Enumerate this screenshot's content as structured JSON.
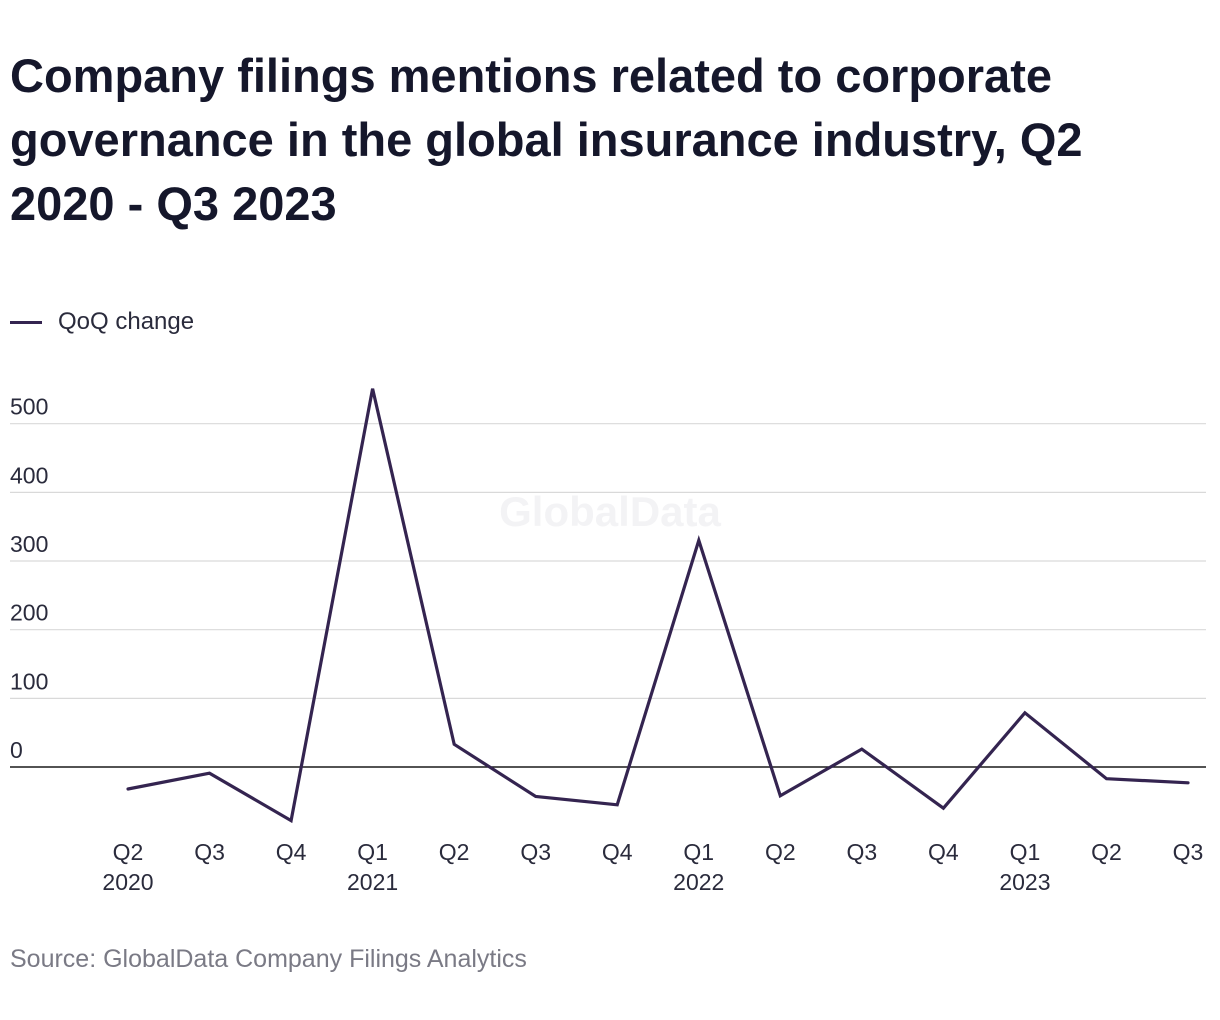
{
  "title": "Company filings mentions related to corporate governance in the global insurance industry, Q2 2020 - Q3 2023",
  "legend": {
    "label": "QoQ change",
    "color": "#342450"
  },
  "watermark": "GlobalData",
  "source": "Source: GlobalData Company Filings Analytics",
  "chart_data": {
    "type": "line",
    "title": "Company filings mentions related to corporate governance in the global insurance industry, Q2 2020 - Q3 2023",
    "xlabel": "",
    "ylabel": "",
    "categories": [
      "Q2 2020",
      "Q3 2020",
      "Q4 2020",
      "Q1 2021",
      "Q2 2021",
      "Q3 2021",
      "Q4 2021",
      "Q1 2022",
      "Q2 2022",
      "Q3 2022",
      "Q4 2022",
      "Q1 2023",
      "Q2 2023",
      "Q3 2023"
    ],
    "tick_labels": [
      {
        "quarter": "Q2",
        "year": "2020"
      },
      {
        "quarter": "Q3",
        "year": ""
      },
      {
        "quarter": "Q4",
        "year": ""
      },
      {
        "quarter": "Q1",
        "year": "2021"
      },
      {
        "quarter": "Q2",
        "year": ""
      },
      {
        "quarter": "Q3",
        "year": ""
      },
      {
        "quarter": "Q4",
        "year": ""
      },
      {
        "quarter": "Q1",
        "year": "2022"
      },
      {
        "quarter": "Q2",
        "year": ""
      },
      {
        "quarter": "Q3",
        "year": ""
      },
      {
        "quarter": "Q4",
        "year": ""
      },
      {
        "quarter": "Q1",
        "year": "2023"
      },
      {
        "quarter": "Q2",
        "year": ""
      },
      {
        "quarter": "Q3",
        "year": ""
      }
    ],
    "series": [
      {
        "name": "QoQ change",
        "color": "#342450",
        "values": [
          -32,
          -9,
          -78,
          551,
          33,
          -43,
          -55,
          330,
          -42,
          26,
          -60,
          79,
          -17,
          -23
        ]
      }
    ],
    "yticks": [
      0,
      100,
      200,
      300,
      400,
      500
    ],
    "ylim": [
      -85,
      560
    ],
    "grid": true,
    "legend_position": "top-left"
  }
}
